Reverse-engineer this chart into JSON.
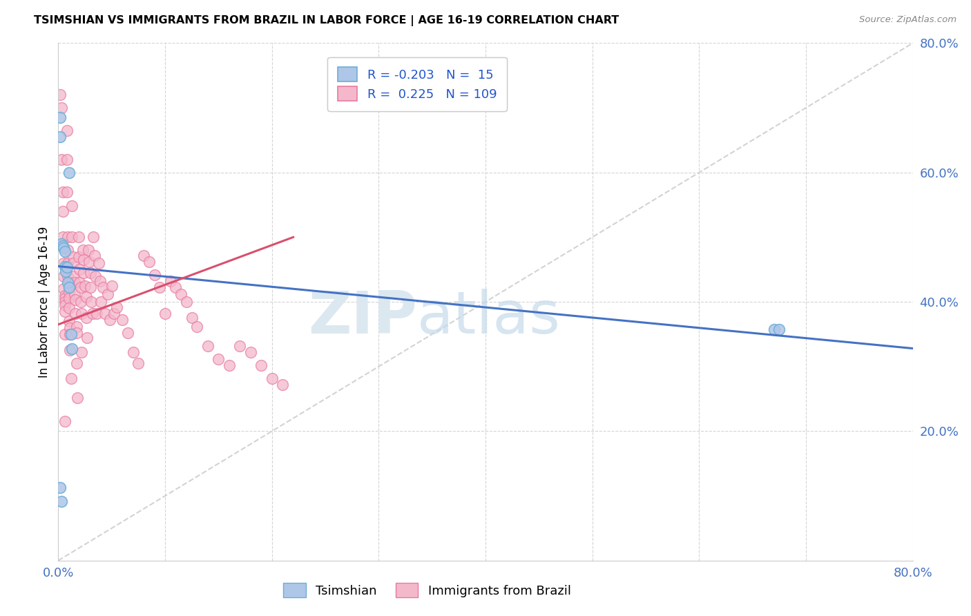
{
  "title": "TSIMSHIAN VS IMMIGRANTS FROM BRAZIL IN LABOR FORCE | AGE 16-19 CORRELATION CHART",
  "source": "Source: ZipAtlas.com",
  "ylabel": "In Labor Force | Age 16-19",
  "xlim": [
    0.0,
    0.8
  ],
  "ylim": [
    0.0,
    0.8
  ],
  "tsimshian_color": "#aec6e8",
  "brazil_color": "#f4b8cb",
  "tsimshian_edge": "#6baed6",
  "brazil_edge": "#e87aa0",
  "blue_line_color": "#4472c4",
  "pink_line_color": "#d94f6e",
  "dashed_line_color": "#c8c8c8",
  "blue_line": {
    "x0": 0.0,
    "y0": 0.455,
    "x1": 0.8,
    "y1": 0.328
  },
  "pink_line": {
    "x0": 0.0,
    "y0": 0.365,
    "x1": 0.22,
    "y1": 0.5
  },
  "tsimshian_x": [
    0.002,
    0.002,
    0.003,
    0.004,
    0.005,
    0.006,
    0.006,
    0.007,
    0.008,
    0.009,
    0.01,
    0.01,
    0.012,
    0.013,
    0.67,
    0.675,
    0.002,
    0.003
  ],
  "tsimshian_y": [
    0.685,
    0.655,
    0.49,
    0.487,
    0.483,
    0.478,
    0.455,
    0.447,
    0.453,
    0.43,
    0.422,
    0.6,
    0.35,
    0.327,
    0.357,
    0.357,
    0.113,
    0.092
  ],
  "brazil_x": [
    0.002,
    0.003,
    0.003,
    0.004,
    0.004,
    0.004,
    0.005,
    0.005,
    0.005,
    0.006,
    0.006,
    0.006,
    0.006,
    0.006,
    0.006,
    0.006,
    0.008,
    0.008,
    0.008,
    0.009,
    0.009,
    0.009,
    0.009,
    0.01,
    0.01,
    0.01,
    0.01,
    0.01,
    0.011,
    0.011,
    0.011,
    0.012,
    0.013,
    0.013,
    0.014,
    0.014,
    0.014,
    0.015,
    0.015,
    0.016,
    0.016,
    0.017,
    0.017,
    0.017,
    0.018,
    0.019,
    0.019,
    0.02,
    0.02,
    0.021,
    0.021,
    0.022,
    0.022,
    0.023,
    0.024,
    0.024,
    0.025,
    0.026,
    0.026,
    0.027,
    0.028,
    0.029,
    0.03,
    0.03,
    0.031,
    0.032,
    0.033,
    0.034,
    0.035,
    0.036,
    0.038,
    0.039,
    0.04,
    0.042,
    0.044,
    0.046,
    0.048,
    0.05,
    0.052,
    0.055,
    0.06,
    0.065,
    0.07,
    0.075,
    0.08,
    0.085,
    0.09,
    0.095,
    0.1,
    0.105,
    0.11,
    0.115,
    0.12,
    0.125,
    0.13,
    0.14,
    0.15,
    0.16,
    0.17,
    0.18,
    0.19,
    0.2,
    0.21
  ],
  "brazil_y": [
    0.72,
    0.7,
    0.62,
    0.57,
    0.54,
    0.5,
    0.46,
    0.44,
    0.42,
    0.41,
    0.405,
    0.4,
    0.395,
    0.385,
    0.35,
    0.215,
    0.665,
    0.62,
    0.57,
    0.5,
    0.48,
    0.46,
    0.44,
    0.43,
    0.415,
    0.405,
    0.39,
    0.37,
    0.36,
    0.35,
    0.325,
    0.282,
    0.548,
    0.5,
    0.47,
    0.46,
    0.44,
    0.43,
    0.412,
    0.403,
    0.382,
    0.362,
    0.352,
    0.305,
    0.252,
    0.5,
    0.47,
    0.45,
    0.43,
    0.422,
    0.4,
    0.382,
    0.322,
    0.48,
    0.465,
    0.445,
    0.425,
    0.408,
    0.375,
    0.345,
    0.48,
    0.462,
    0.445,
    0.422,
    0.4,
    0.382,
    0.5,
    0.472,
    0.44,
    0.382,
    0.46,
    0.432,
    0.4,
    0.422,
    0.382,
    0.412,
    0.372,
    0.425,
    0.382,
    0.392,
    0.372,
    0.352,
    0.322,
    0.305,
    0.472,
    0.462,
    0.442,
    0.422,
    0.382,
    0.432,
    0.422,
    0.412,
    0.4,
    0.375,
    0.362,
    0.332,
    0.312,
    0.302,
    0.332,
    0.322,
    0.302,
    0.282,
    0.272
  ]
}
